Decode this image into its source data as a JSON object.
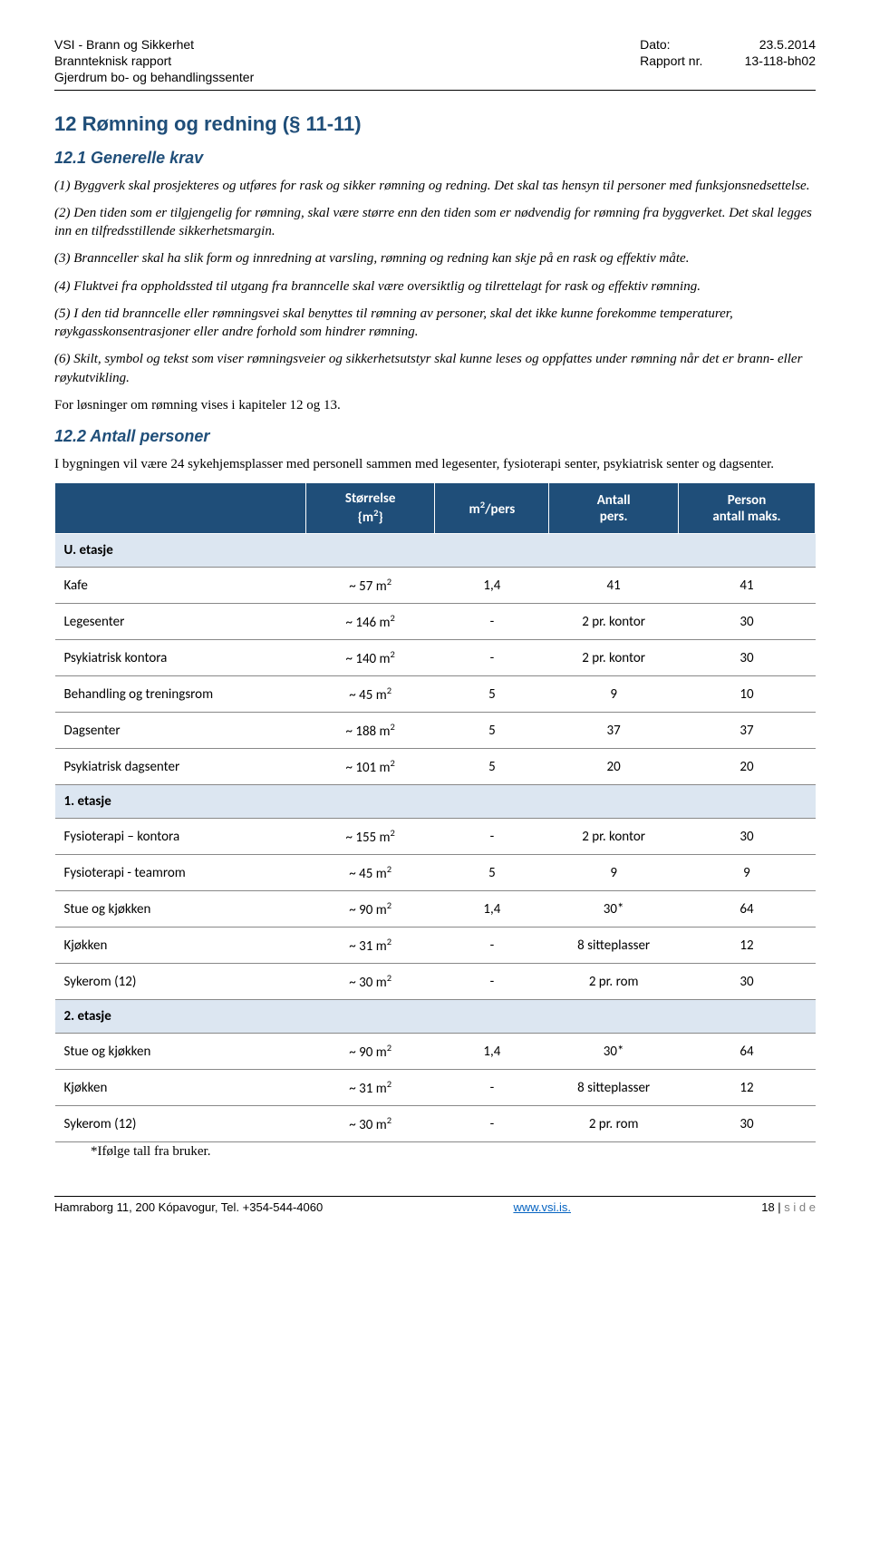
{
  "header": {
    "left_line1": "VSI - Brann og Sikkerhet",
    "left_line2": "Brannteknisk rapport",
    "left_line3": "Gjerdrum bo- og behandlingssenter",
    "right_label1": "Dato:",
    "right_val1": "23.5.2014",
    "right_label2": "Rapport nr.",
    "right_val2": "13-118-bh02"
  },
  "section12": {
    "title": "12  Rømning og redning (§ 11-11)",
    "sub1_title": "12.1 Generelle krav",
    "p1": "(1) Byggverk skal prosjekteres og utføres for rask og sikker rømning og redning. Det skal tas hensyn til personer med funksjonsnedsettelse.",
    "p2": "(2) Den tiden som er tilgjengelig for rømning, skal være større enn den tiden som er nødvendig for rømning fra byggverket. Det skal legges inn en tilfredsstillende sikkerhetsmargin.",
    "p3": "(3) Brannceller skal ha slik form og innredning at varsling, rømning og redning kan skje på en rask og effektiv måte.",
    "p4": "(4) Fluktvei fra oppholdssted til utgang fra branncelle skal være oversiktlig og tilrettelagt for rask og effektiv rømning.",
    "p5": "(5) I den tid branncelle eller rømningsvei skal benyttes til rømning av personer, skal det ikke kunne forekomme temperaturer, røykgasskonsentrasjoner eller andre forhold som hindrer rømning.",
    "p6": "(6) Skilt, symbol og tekst som viser rømningsveier og sikkerhetsutstyr skal kunne leses og oppfattes under rømning når det er brann- eller røykutvikling.",
    "p7": "For løsninger om rømning vises i kapiteler 12 og 13.",
    "sub2_title": "12.2 Antall personer",
    "p8": "I bygningen vil være 24 sykehjemsplasser med personell sammen med legesenter, fysioterapi senter, psykiatrisk senter og dagsenter."
  },
  "table": {
    "headers": {
      "c1": "",
      "c2_a": "Størrelse",
      "c2_b": "{m",
      "c2_c": "}",
      "c3_a": "m",
      "c3_b": "/pers",
      "c4_a": "Antall",
      "c4_b": "pers.",
      "c5_a": "Person",
      "c5_b": "antall maks."
    },
    "sections": [
      {
        "label": "U. etasje",
        "rows": [
          {
            "name": "Kafe",
            "size": "~ 57 m",
            "per": "1,4",
            "antall": "41",
            "maks": "41"
          },
          {
            "name": "Legesenter",
            "size": "~ 146 m",
            "per": "-",
            "antall": "2 pr. kontor",
            "maks": "30"
          },
          {
            "name": "Psykiatrisk kontora",
            "size": "~ 140 m",
            "per": "-",
            "antall": "2 pr. kontor",
            "maks": "30"
          },
          {
            "name": "Behandling og treningsrom",
            "size": "~ 45 m",
            "per": "5",
            "antall": "9",
            "maks": "10"
          },
          {
            "name": "Dagsenter",
            "size": "~ 188 m",
            "per": "5",
            "antall": "37",
            "maks": "37"
          },
          {
            "name": "Psykiatrisk dagsenter",
            "size": "~ 101 m",
            "per": "5",
            "antall": "20",
            "maks": "20"
          }
        ]
      },
      {
        "label": "1. etasje",
        "rows": [
          {
            "name": "Fysioterapi – kontora",
            "size": "~ 155 m",
            "per": "-",
            "antall": "2 pr. kontor",
            "maks": "30"
          },
          {
            "name": "Fysioterapi - teamrom",
            "size": "~ 45 m",
            "per": "5",
            "antall": "9",
            "maks": "9"
          },
          {
            "name": "Stue og kjøkken",
            "size": "~ 90 m",
            "per": "1,4",
            "antall": "30*",
            "maks": "64"
          },
          {
            "name": "Kjøkken",
            "size": "~ 31 m",
            "per": "-",
            "antall": "8 sitteplasser",
            "maks": "12"
          },
          {
            "name": "Sykerom (12)",
            "size": "~ 30 m",
            "per": "-",
            "antall": "2 pr. rom",
            "maks": "30"
          }
        ]
      },
      {
        "label": "2. etasje",
        "rows": [
          {
            "name": "Stue og kjøkken",
            "size": "~ 90 m",
            "per": "1,4",
            "antall": "30*",
            "maks": "64"
          },
          {
            "name": "Kjøkken",
            "size": "~ 31 m",
            "per": "-",
            "antall": "8 sitteplasser",
            "maks": "12"
          },
          {
            "name": "Sykerom (12)",
            "size": "~ 30 m",
            "per": "-",
            "antall": "2 pr. rom",
            "maks": "30"
          }
        ]
      }
    ],
    "footnote": "*Ifølge tall fra bruker."
  },
  "footer": {
    "left": "Hamraborg 11, 200 Kópavogur, Tel. +354-544-4060",
    "center": "www.vsi.is.",
    "right_a": "18 | ",
    "right_b": "s i d e"
  }
}
